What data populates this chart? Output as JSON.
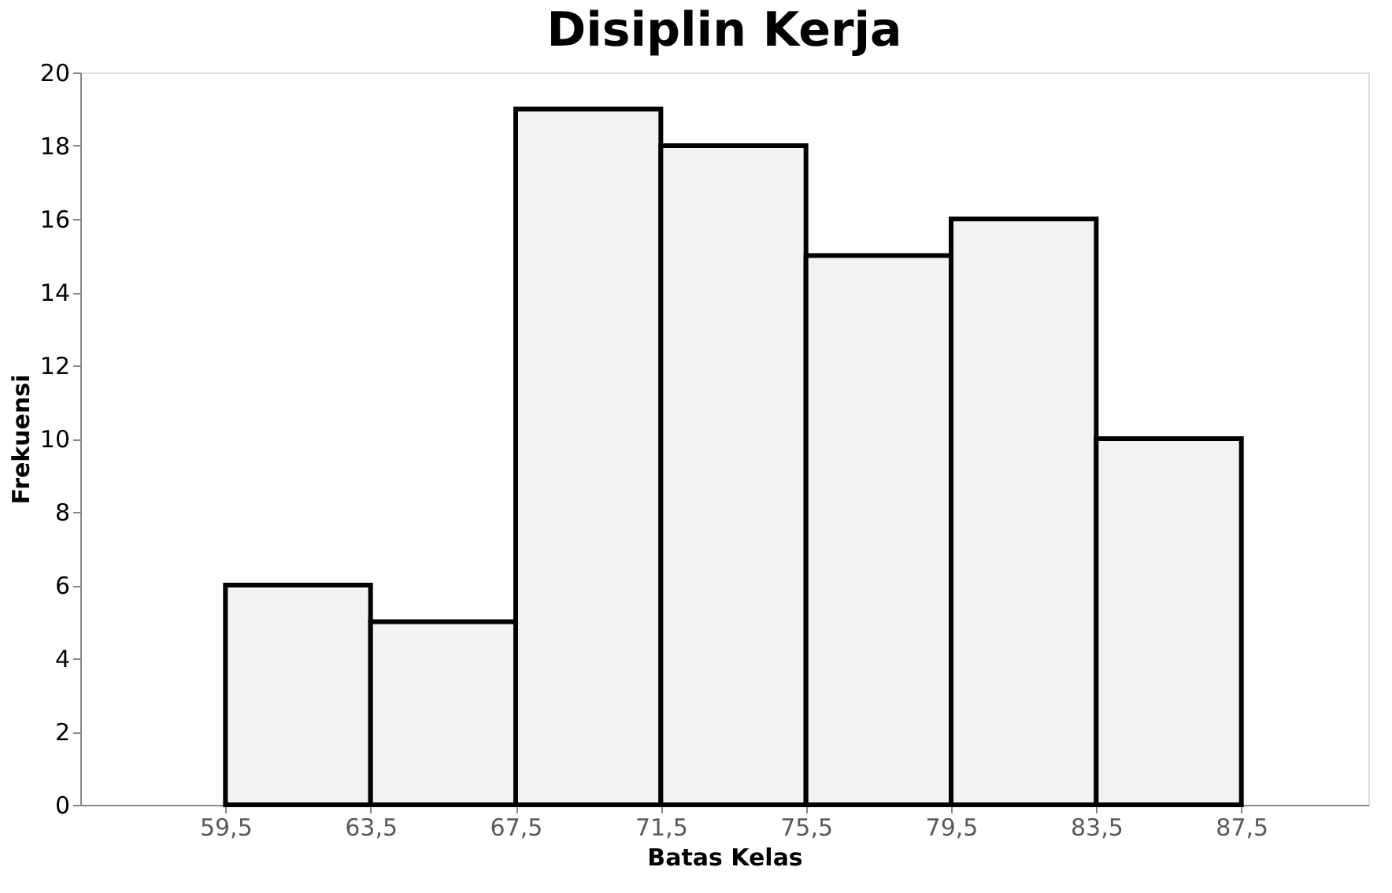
{
  "chart_data": {
    "type": "histogram",
    "title": "Disiplin Kerja",
    "xlabel": "Batas Kelas",
    "ylabel": "Frekuensi",
    "bins": [
      59.5,
      63.5,
      67.5,
      71.5,
      75.5,
      79.5,
      83.5,
      87.5
    ],
    "values": [
      6,
      5,
      19,
      18,
      15,
      16,
      10
    ],
    "color": "#f2f2f2",
    "xlim": [
      55.5,
      91
    ],
    "xticks": [
      {
        "value": 59.5,
        "label": "59,5"
      },
      {
        "value": 63.5,
        "label": "63,5"
      },
      {
        "value": 67.5,
        "label": "67,5"
      },
      {
        "value": 71.5,
        "label": "71,5"
      },
      {
        "value": 75.5,
        "label": "75,5"
      },
      {
        "value": 79.5,
        "label": "79,5"
      },
      {
        "value": 83.5,
        "label": "83,5"
      },
      {
        "value": 87.5,
        "label": "87,5"
      }
    ],
    "ylim": [
      0,
      20
    ],
    "yticks": [
      0,
      2,
      4,
      6,
      8,
      10,
      12,
      14,
      16,
      18,
      20
    ],
    "grid": false
  }
}
